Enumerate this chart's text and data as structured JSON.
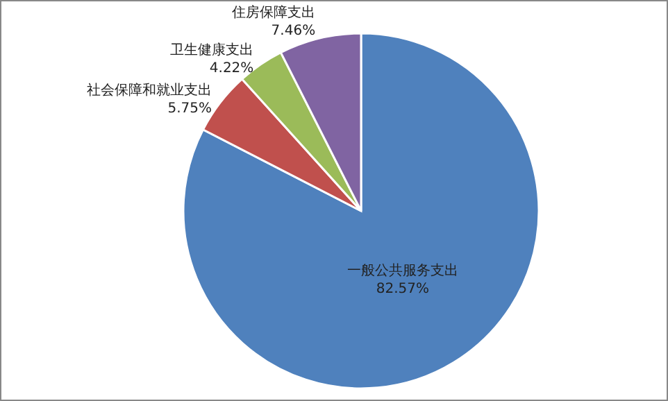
{
  "chart_data": {
    "type": "pie",
    "categories": [
      "一般公共服务支出",
      "社会保障和就业支出",
      "卫生健康支出",
      "住房保障支出"
    ],
    "values": [
      82.57,
      5.75,
      4.22,
      7.46
    ],
    "colors": [
      "#4f81bd",
      "#c0504d",
      "#9bbb59",
      "#8064a2"
    ],
    "value_labels": [
      "82.57%",
      "5.75%",
      "4.22%",
      "7.46%"
    ]
  }
}
